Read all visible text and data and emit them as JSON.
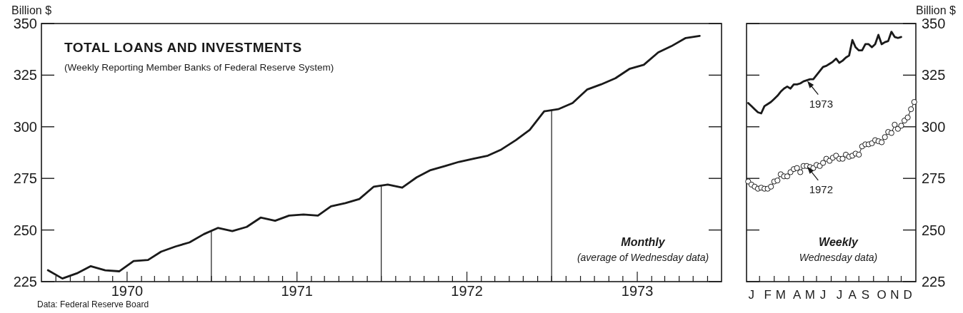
{
  "chart_data": [
    {
      "type": "line",
      "title": "TOTAL LOANS AND INVESTMENTS",
      "subtitle": "(Weekly Reporting Member Banks of Federal Reserve System)",
      "ylabel": "Billion $",
      "x": [
        "1969-07-15",
        "1969-08-15",
        "1969-09-15",
        "1969-10-15",
        "1969-11-15",
        "1969-12-15",
        "1970-01-15",
        "1970-02-15",
        "1970-03-15",
        "1970-04-15",
        "1970-05-15",
        "1970-06-15",
        "1970-07-15",
        "1970-08-15",
        "1970-09-15",
        "1970-10-15",
        "1970-11-15",
        "1970-12-15",
        "1971-01-15",
        "1971-02-15",
        "1971-03-15",
        "1971-04-15",
        "1971-05-15",
        "1971-06-15",
        "1971-07-15",
        "1971-08-15",
        "1971-09-15",
        "1971-10-15",
        "1971-11-15",
        "1971-12-15",
        "1972-01-15",
        "1972-02-15",
        "1972-03-15",
        "1972-04-15",
        "1972-05-15",
        "1972-06-15",
        "1972-07-15",
        "1972-08-15",
        "1972-09-15",
        "1972-10-15",
        "1972-11-15",
        "1972-12-15",
        "1973-01-15",
        "1973-02-15",
        "1973-03-15",
        "1973-04-15",
        "1973-05-15"
      ],
      "series": [
        {
          "color": "#1a1a1a",
          "values": [
            230.5,
            226.5,
            229,
            232.5,
            230.5,
            230,
            235,
            235.5,
            239.5,
            242,
            244,
            248,
            251,
            249.5,
            251.5,
            256,
            254.5,
            257,
            257.5,
            257,
            261.5,
            263,
            265,
            271,
            272,
            270.5,
            275.5,
            279,
            281,
            283,
            284.5,
            286,
            289,
            293.5,
            298.5,
            307.5,
            308.5,
            311.5,
            318,
            320.5,
            323.5,
            328,
            330,
            336,
            339,
            343,
            344
          ]
        }
      ],
      "xlim": [
        "1969-07-01",
        "1973-07-01"
      ],
      "xticks": [
        {
          "value": "1969-08-01",
          "label": null
        },
        {
          "value": "1969-09-01",
          "label": null
        },
        {
          "value": "1969-10-01",
          "label": null
        },
        {
          "value": "1969-11-01",
          "label": null
        },
        {
          "value": "1969-12-01",
          "label": null
        },
        {
          "value": "1970-01-01",
          "label": "1970"
        },
        {
          "value": "1970-02-01",
          "label": null
        },
        {
          "value": "1970-03-01",
          "label": null
        },
        {
          "value": "1970-04-01",
          "label": null
        },
        {
          "value": "1970-05-01",
          "label": null
        },
        {
          "value": "1970-06-01",
          "label": null
        },
        {
          "value": "1970-07-01",
          "label": null
        },
        {
          "value": "1970-08-01",
          "label": null
        },
        {
          "value": "1970-09-01",
          "label": null
        },
        {
          "value": "1970-10-01",
          "label": null
        },
        {
          "value": "1970-11-01",
          "label": null
        },
        {
          "value": "1970-12-01",
          "label": null
        },
        {
          "value": "1971-01-01",
          "label": "1971"
        },
        {
          "value": "1971-02-01",
          "label": null
        },
        {
          "value": "1971-03-01",
          "label": null
        },
        {
          "value": "1971-04-01",
          "label": null
        },
        {
          "value": "1971-05-01",
          "label": null
        },
        {
          "value": "1971-06-01",
          "label": null
        },
        {
          "value": "1971-07-01",
          "label": null
        },
        {
          "value": "1971-08-01",
          "label": null
        },
        {
          "value": "1971-09-01",
          "label": null
        },
        {
          "value": "1971-10-01",
          "label": null
        },
        {
          "value": "1971-11-01",
          "label": null
        },
        {
          "value": "1971-12-01",
          "label": null
        },
        {
          "value": "1972-01-01",
          "label": "1972"
        },
        {
          "value": "1972-02-01",
          "label": null
        },
        {
          "value": "1972-03-01",
          "label": null
        },
        {
          "value": "1972-04-01",
          "label": null
        },
        {
          "value": "1972-05-01",
          "label": null
        },
        {
          "value": "1972-06-01",
          "label": null
        },
        {
          "value": "1972-07-01",
          "label": null
        },
        {
          "value": "1972-08-01",
          "label": null
        },
        {
          "value": "1972-09-01",
          "label": null
        },
        {
          "value": "1972-10-01",
          "label": null
        },
        {
          "value": "1972-11-01",
          "label": null
        },
        {
          "value": "1972-12-01",
          "label": null
        },
        {
          "value": "1973-01-01",
          "label": "1973"
        },
        {
          "value": "1973-02-01",
          "label": null
        },
        {
          "value": "1973-03-01",
          "label": null
        },
        {
          "value": "1973-04-01",
          "label": null
        },
        {
          "value": "1973-05-01",
          "label": null
        },
        {
          "value": "1973-06-01",
          "label": null
        }
      ],
      "ylim": [
        225,
        350
      ],
      "yticks": [
        225,
        250,
        275,
        300,
        325,
        350
      ],
      "ref_lines": [
        {
          "axis": "x",
          "value": "1970-07-01"
        },
        {
          "axis": "x",
          "value": "1971-07-01"
        },
        {
          "axis": "x",
          "value": "1972-07-01"
        }
      ],
      "annotations": [
        "Monthly",
        "(average of Wednesday data)",
        "Data:  Federal Reserve Board"
      ]
    },
    {
      "type": "line",
      "ylabel": "Billion $",
      "categories": [
        null,
        "J",
        null,
        null,
        null,
        null,
        "F",
        null,
        null,
        null,
        "M",
        null,
        null,
        null,
        null,
        "A",
        null,
        null,
        null,
        "M",
        null,
        null,
        null,
        "J",
        null,
        null,
        null,
        null,
        "J",
        null,
        null,
        null,
        "A",
        null,
        null,
        null,
        "S",
        null,
        null,
        null,
        null,
        "O",
        null,
        null,
        null,
        "N",
        null,
        null,
        null,
        "D",
        null,
        null
      ],
      "series": [
        {
          "color": "#1a1a1a",
          "values": [
            311.5,
            310,
            308.5,
            307,
            306.5,
            310,
            311,
            312,
            313.5,
            315,
            317,
            318.5,
            319.5,
            318.5,
            320.5,
            320.5,
            321,
            322,
            322.5,
            323,
            323,
            325,
            327,
            329,
            329.5,
            330.5,
            331.5,
            333,
            331,
            332,
            333.5,
            334.5,
            342,
            338.5,
            337,
            337,
            340,
            340,
            338.5,
            340,
            344.5,
            340,
            341,
            341.5,
            346,
            343.5,
            343,
            343.5,
            null,
            null,
            null,
            null
          ]
        },
        {
          "color": "#1a1a1a",
          "marker": "circle",
          "values": [
            273.5,
            272,
            271,
            270,
            270.5,
            270,
            270,
            271,
            273.5,
            274,
            277,
            276,
            276,
            278,
            279.5,
            280,
            278,
            281,
            281,
            280.5,
            280,
            281.5,
            281,
            282.5,
            284.5,
            283.5,
            285,
            286,
            284.5,
            284.5,
            286.5,
            285.5,
            286,
            287,
            286.5,
            290.5,
            291.5,
            291.5,
            292,
            293.5,
            293,
            292.5,
            295,
            297.5,
            297,
            301,
            299,
            300.5,
            303,
            304.5,
            308.5,
            312
          ]
        }
      ],
      "ylim": [
        225,
        350
      ],
      "yticks": [
        225,
        250,
        275,
        300,
        325,
        350
      ],
      "annotations": [
        "1973",
        "1972",
        "Weekly",
        "Wednesday data)"
      ]
    }
  ]
}
